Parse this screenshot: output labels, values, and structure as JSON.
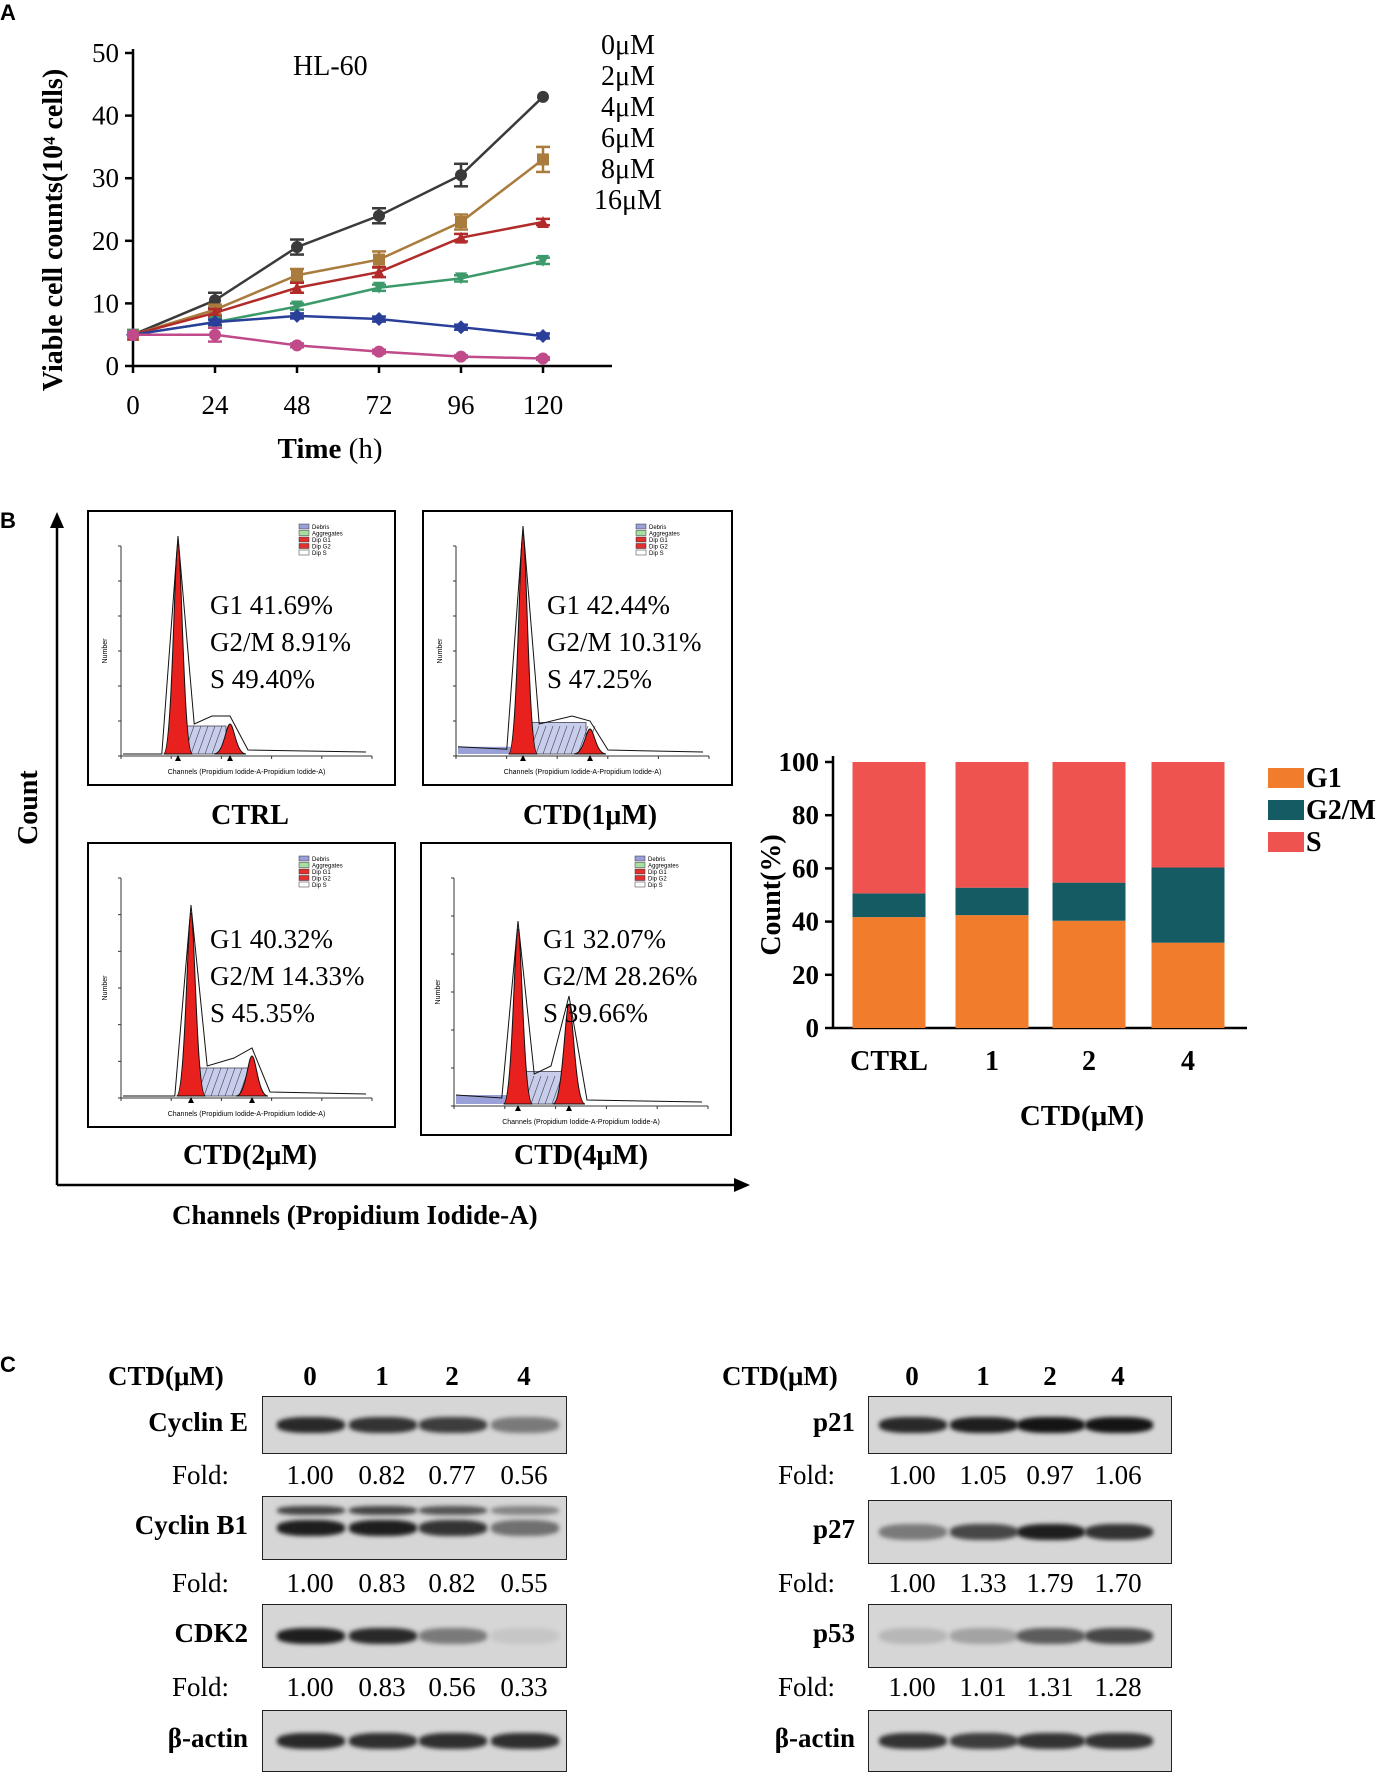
{
  "panels": {
    "a": "A",
    "b": "B",
    "c": "C"
  },
  "chart_data": [
    {
      "type": "line",
      "title": "HL-60",
      "xlabel_bold": "Time",
      "xlabel_unit": " (h)",
      "ylabel": "Viable cell counts(10⁴ cells)",
      "x": [
        0,
        24,
        48,
        72,
        96,
        120
      ],
      "xticks": [
        "0",
        "24",
        "48",
        "72",
        "96",
        "120"
      ],
      "yticks": [
        "0",
        "10",
        "20",
        "30",
        "40",
        "50"
      ],
      "ylim": [
        0,
        50
      ],
      "xlim": [
        0,
        120
      ],
      "series": [
        {
          "name": "0μM",
          "color": "#3a3a3a",
          "marker": "circle",
          "values": [
            5,
            10.5,
            19,
            24,
            30.5,
            43
          ],
          "err": [
            0,
            1.2,
            1.2,
            1.2,
            1.8,
            0
          ]
        },
        {
          "name": "2μM",
          "color": "#a97b3c",
          "marker": "square",
          "values": [
            5,
            9,
            14.5,
            17,
            23,
            33
          ],
          "err": [
            0,
            0.8,
            1,
            1.3,
            1.2,
            2
          ]
        },
        {
          "name": "4μM",
          "color": "#b22b2b",
          "marker": "triangle-up",
          "values": [
            5,
            8.5,
            12.5,
            15,
            20.5,
            23
          ],
          "err": [
            0,
            0.6,
            0.8,
            0.8,
            0.6,
            0.5
          ]
        },
        {
          "name": "6μM",
          "color": "#3c9a6a",
          "marker": "triangle-down",
          "values": [
            5,
            7,
            9.5,
            12.5,
            14,
            16.8
          ],
          "err": [
            0,
            0.5,
            0.5,
            0.5,
            0.5,
            0.5
          ]
        },
        {
          "name": "8μM",
          "color": "#2a3f9a",
          "marker": "diamond",
          "values": [
            5,
            7,
            8,
            7.5,
            6.2,
            4.8
          ],
          "err": [
            0,
            0.4,
            0.4,
            0.4,
            0.4,
            0.4
          ]
        },
        {
          "name": "16μM",
          "color": "#c04a8a",
          "marker": "circle",
          "values": [
            5,
            5,
            3.3,
            2.3,
            1.5,
            1.2
          ],
          "err": [
            0,
            1.1,
            0.3,
            0.3,
            0.2,
            0.2
          ]
        }
      ]
    },
    {
      "type": "bar",
      "stacked": true,
      "categories": [
        "CTRL",
        "1",
        "2",
        "4"
      ],
      "xlabel": "CTD(μM)",
      "ylabel": "Count(%)",
      "yticks": [
        "0",
        "20",
        "40",
        "60",
        "80",
        "100"
      ],
      "ylim": [
        0,
        100
      ],
      "series": [
        {
          "name": "G1",
          "color": "#f07c2c",
          "values": [
            41.69,
            42.44,
            40.32,
            32.07
          ]
        },
        {
          "name": "G2/M",
          "color": "#145b63",
          "values": [
            8.91,
            10.31,
            14.33,
            28.26
          ]
        },
        {
          "name": "S",
          "color": "#ef5350",
          "values": [
            49.4,
            47.25,
            45.35,
            39.66
          ]
        }
      ]
    }
  ],
  "flow": {
    "axis_y": "Count",
    "axis_x": "Channels (Propidium Iodide-A)",
    "inner_xlabel": "Channels (Propidium Iodide-A-Propidium Iodide-A)",
    "inner_ylabel": "Number",
    "legend": [
      "Debris",
      "Aggregates",
      "Dip G1",
      "Dip G2",
      "Dip S"
    ],
    "plots": [
      {
        "label": "CTRL",
        "g1": "G1 41.69%",
        "g2m": "G2/M 8.91%",
        "s": "S 49.40%"
      },
      {
        "label": "CTD(1μM)",
        "g1": "G1 42.44%",
        "g2m": "G2/M 10.31%",
        "s": "S 47.25%"
      },
      {
        "label": "CTD(2μM)",
        "g1": "G1 40.32%",
        "g2m": "G2/M 14.33%",
        "s": "S 45.35%"
      },
      {
        "label": "CTD(4μM)",
        "g1": "G1 32.07%",
        "g2m": "G2/M 28.26%",
        "s": "S 39.66%"
      }
    ]
  },
  "western": {
    "head": "CTD(μM)",
    "lanes": [
      "0",
      "1",
      "2",
      "4"
    ],
    "fold_label": "Fold:",
    "left": [
      {
        "name": "Cyclin E",
        "folds": [
          "1.00",
          "0.82",
          "0.77",
          "0.56"
        ]
      },
      {
        "name": "Cyclin B1",
        "folds": [
          "1.00",
          "0.83",
          "0.82",
          "0.55"
        ]
      },
      {
        "name": "CDK2",
        "folds": [
          "1.00",
          "0.83",
          "0.56",
          "0.33"
        ]
      },
      {
        "name": "β-actin"
      }
    ],
    "right": [
      {
        "name": "p21",
        "folds": [
          "1.00",
          "1.05",
          "0.97",
          "1.06"
        ]
      },
      {
        "name": "p27",
        "folds": [
          "1.00",
          "1.33",
          "1.79",
          "1.70"
        ]
      },
      {
        "name": "p53",
        "folds": [
          "1.00",
          "1.01",
          "1.31",
          "1.28"
        ]
      },
      {
        "name": "β-actin"
      }
    ]
  }
}
